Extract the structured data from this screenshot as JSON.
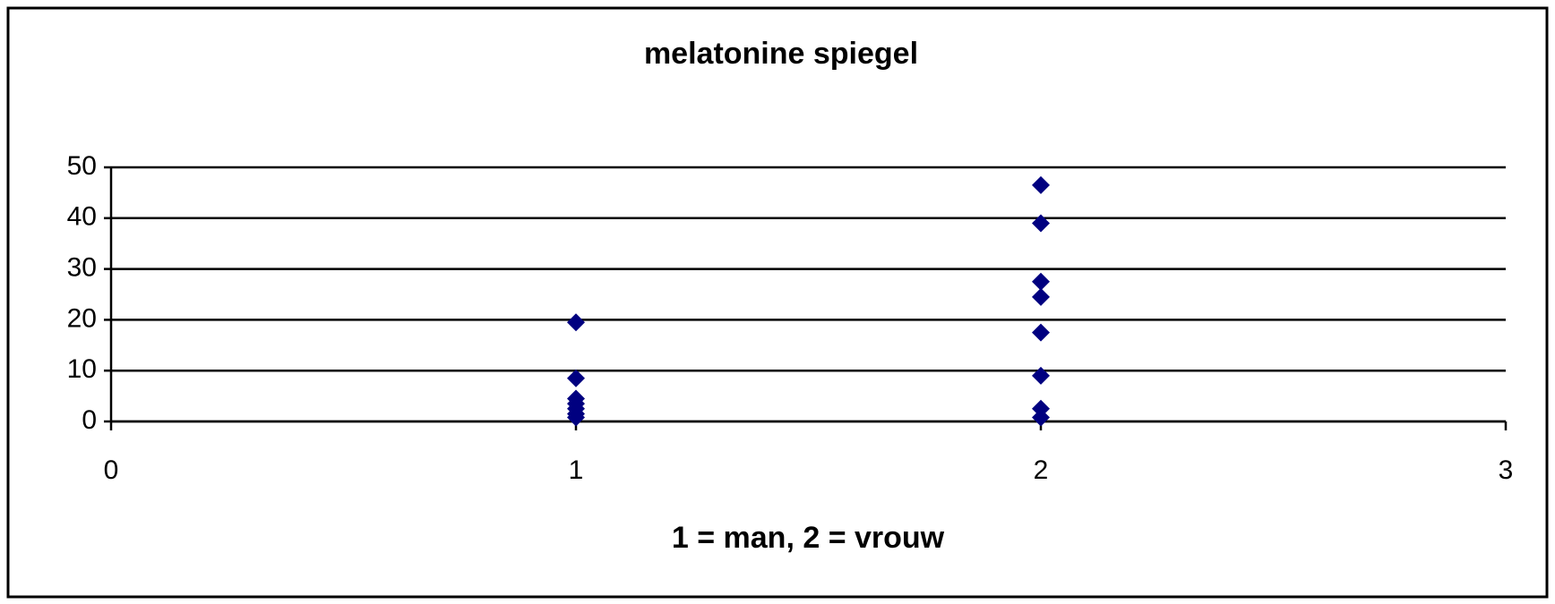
{
  "chart_data": {
    "type": "scatter",
    "title": "melatonine spiegel",
    "x_label": "1 = man, 2 = vrouw",
    "series": [
      {
        "color": "#000080",
        "x": [
          1,
          1,
          1,
          1,
          1,
          1,
          1,
          2,
          2,
          2,
          2,
          2,
          2,
          2,
          2
        ],
        "values": [
          19.5,
          8.5,
          4.5,
          3.5,
          2.5,
          1.5,
          0.8,
          46.5,
          39,
          27.5,
          24.5,
          17.5,
          9,
          2.5,
          0.8
        ]
      }
    ],
    "xlim": [
      0,
      3
    ],
    "xticks": [
      0,
      1,
      2,
      3
    ],
    "ylim": [
      0,
      50
    ],
    "yticks": [
      0,
      10,
      20,
      30,
      40,
      50
    ],
    "grid": true
  }
}
